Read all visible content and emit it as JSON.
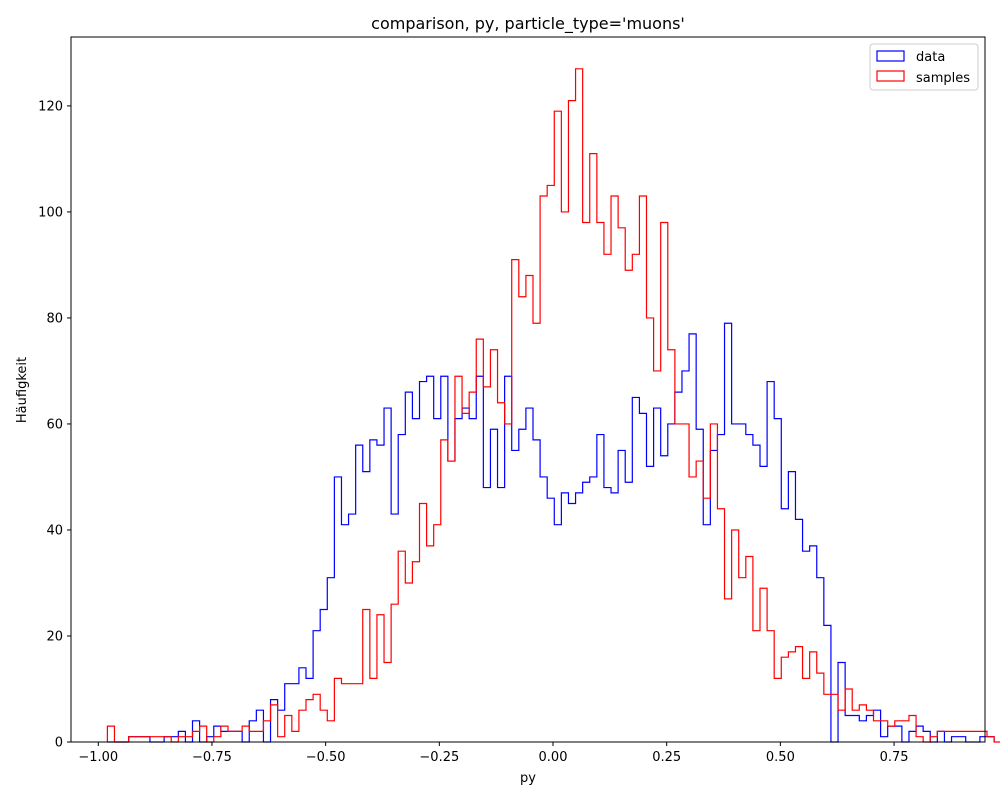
{
  "chart_data": {
    "type": "histogram-step",
    "title": "comparison, py, particle_type='muons'",
    "xlabel": "py",
    "ylabel": "Häufigkeit",
    "xlim": [
      -1.06,
      0.95
    ],
    "ylim": [
      0,
      133
    ],
    "x_ticks": [
      -1.0,
      -0.75,
      -0.5,
      -0.25,
      0.0,
      0.25,
      0.5,
      0.75
    ],
    "x_tick_labels": [
      "−1.00",
      "−0.75",
      "−0.50",
      "−0.25",
      "0.00",
      "0.25",
      "0.50",
      "0.75"
    ],
    "y_ticks": [
      0,
      20,
      40,
      60,
      80,
      100,
      120
    ],
    "y_tick_labels": [
      "0",
      "20",
      "40",
      "60",
      "80",
      "100",
      "120"
    ],
    "legend_position": "top-right",
    "bins": {
      "start": -0.98,
      "width": 0.0156
    },
    "series": [
      {
        "name": "data",
        "color": "#0000ff",
        "start": -0.98,
        "values": [
          0,
          0,
          0,
          1,
          1,
          1,
          0,
          0,
          1,
          1,
          2,
          0,
          4,
          0,
          1,
          3,
          2,
          2,
          2,
          0,
          4,
          6,
          0,
          8,
          6,
          11,
          11,
          14,
          12,
          21,
          25,
          31,
          50,
          41,
          43,
          56,
          51,
          57,
          56,
          63,
          43,
          58,
          66,
          61,
          68,
          69,
          61,
          69,
          53,
          61,
          63,
          61,
          69,
          48,
          59,
          48,
          69,
          55,
          59,
          63,
          57,
          50,
          46,
          41,
          47,
          45,
          47,
          49,
          50,
          58,
          48,
          47,
          55,
          49,
          65,
          62,
          52,
          63,
          54,
          60,
          66,
          70,
          77,
          59,
          41,
          55,
          58,
          79,
          60,
          60,
          58,
          56,
          52,
          68,
          61,
          44,
          51,
          42,
          36,
          37,
          31,
          22,
          0,
          15,
          5,
          5,
          4,
          5,
          6,
          1,
          3,
          3,
          0,
          2,
          3,
          2,
          0,
          2,
          0,
          1,
          1,
          0,
          0,
          1,
          1
        ]
      },
      {
        "name": "samples",
        "color": "#ff0000",
        "start": -0.98,
        "values": [
          3,
          0,
          0,
          1,
          1,
          1,
          1,
          1,
          1,
          0,
          1,
          1,
          2,
          3,
          0,
          1,
          3,
          2,
          2,
          3,
          2,
          2,
          4,
          7,
          1,
          5,
          2,
          6,
          8,
          9,
          6,
          4,
          12,
          11,
          11,
          11,
          25,
          12,
          24,
          15,
          26,
          36,
          30,
          34,
          45,
          37,
          41,
          57,
          53,
          69,
          62,
          66,
          76,
          67,
          74,
          64,
          60,
          91,
          84,
          88,
          79,
          103,
          105,
          119,
          100,
          121,
          127,
          98,
          111,
          98,
          92,
          103,
          97,
          89,
          92,
          103,
          80,
          70,
          98,
          74,
          60,
          60,
          50,
          53,
          46,
          60,
          44,
          27,
          40,
          31,
          35,
          21,
          29,
          21,
          12,
          16,
          17,
          18,
          12,
          17,
          13,
          9,
          9,
          6,
          10,
          6,
          7,
          6,
          4,
          4,
          3,
          4,
          4,
          5,
          1,
          0,
          1,
          2,
          2,
          2,
          2,
          2,
          2,
          2,
          1,
          0,
          0,
          3
        ]
      }
    ]
  }
}
